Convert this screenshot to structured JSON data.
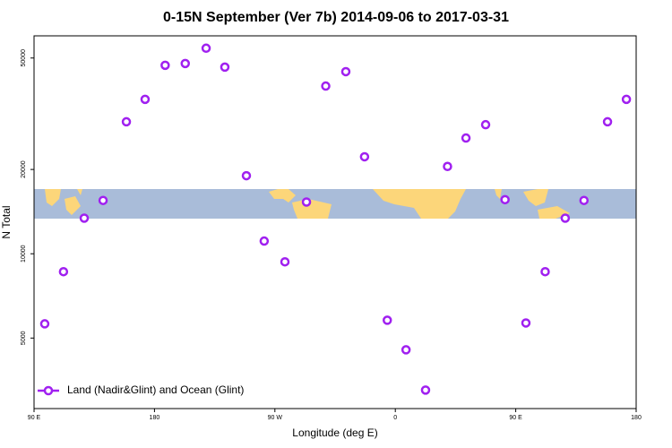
{
  "chart_data": {
    "type": "scatter",
    "title": "0-15N September (Ver 7b)   2014-09-06 to 2017-03-31",
    "x_label": "Longitude (deg E)",
    "y_label": "N Total",
    "series": [
      {
        "name": "Land (Nadir&Glint) and Ocean (Glint)",
        "color": "#a020f0",
        "x": [
          98,
          112,
          127.5,
          141.6,
          159,
          173,
          188,
          203,
          218.6,
          232.6,
          248.7,
          262,
          277.5,
          293.6,
          308,
          323,
          337,
          354,
          368,
          382.6,
          399,
          412.8,
          427.5,
          442,
          457.6,
          472,
          487,
          501,
          518.6,
          532.7
        ],
        "values": [
          5620,
          8630,
          13400,
          15500,
          29600,
          35600,
          47100,
          47800,
          54200,
          46400,
          19000,
          11100,
          9360,
          15300,
          39700,
          44700,
          22200,
          5790,
          4540,
          3260,
          20500,
          25900,
          28900,
          15600,
          5660,
          8630,
          13400,
          15500,
          29600,
          35600
        ]
      }
    ],
    "xlim": [
      90,
      540
    ],
    "xticks": [
      {
        "value": 90,
        "label": "90 E"
      },
      {
        "value": 180,
        "label": "180"
      },
      {
        "value": 270,
        "label": "90 W"
      },
      {
        "value": 360,
        "label": "0"
      },
      {
        "value": 450,
        "label": "90 E"
      },
      {
        "value": 540,
        "label": "180"
      }
    ],
    "ylim": [
      2800,
      60000
    ],
    "yticks": [
      5000,
      10000,
      20000,
      50000
    ],
    "log_y": true,
    "legend": "bottom-left"
  }
}
